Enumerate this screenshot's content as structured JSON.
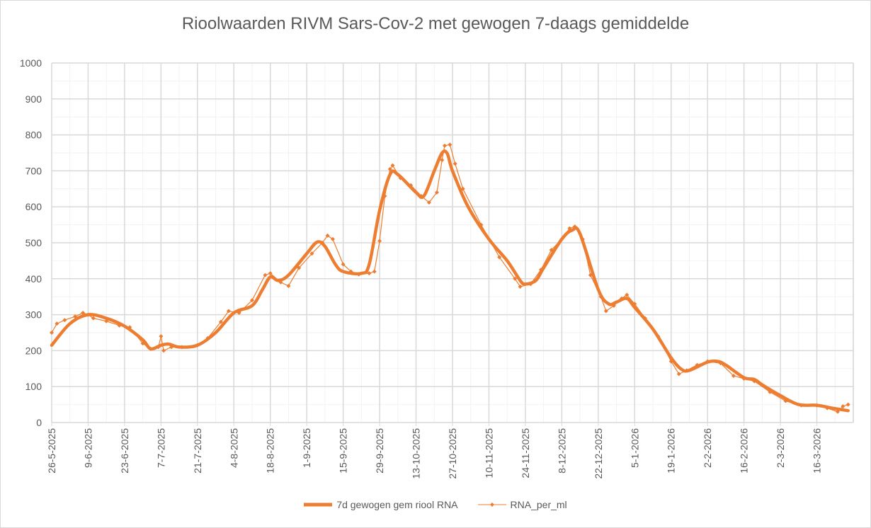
{
  "chart_data": {
    "type": "line",
    "title": "Rioolwaarden RIVM Sars-Cov-2 met gewogen 7-daags gemiddelde",
    "xlabel": "",
    "ylabel": "",
    "x_unit": "days since 26-5-2025",
    "xlim": [
      0,
      308
    ],
    "ylim": [
      0,
      1000
    ],
    "y_ticks": [
      0,
      100,
      200,
      300,
      400,
      500,
      600,
      700,
      800,
      900,
      1000
    ],
    "x_tick_labels": [
      "26-5-2025",
      "9-6-2025",
      "23-6-2025",
      "7-7-2025",
      "21-7-2025",
      "4-8-2025",
      "18-8-2025",
      "1-9-2025",
      "15-9-2025",
      "29-9-2025",
      "13-10-2025",
      "27-10-2025",
      "10-11-2025",
      "24-11-2025",
      "8-12-2025",
      "22-12-2025",
      "5-1-2026",
      "19-1-2026",
      "2-2-2026",
      "16-2-2026",
      "2-3-2026",
      "16-3-2026"
    ],
    "grid": true,
    "color": "#ED7D31",
    "legend_position": "bottom",
    "series": [
      {
        "name": "7d gewogen gem riool RNA",
        "style": "thick-line",
        "x": [
          0,
          7,
          14,
          21,
          28,
          35,
          38,
          42,
          45,
          49,
          56,
          63,
          70,
          77,
          81,
          84,
          87,
          91,
          98,
          102,
          105,
          109,
          112,
          119,
          122,
          126,
          130,
          133,
          140,
          143,
          147,
          150,
          152,
          154,
          160,
          168,
          175,
          180,
          182,
          186,
          189,
          196,
          200,
          203,
          210,
          214,
          217,
          221,
          224,
          231,
          238,
          242,
          245,
          252,
          256,
          259,
          266,
          270,
          273,
          280,
          287,
          294,
          300,
          306
        ],
        "y": [
          215,
          275,
          300,
          290,
          268,
          230,
          205,
          215,
          218,
          210,
          215,
          250,
          305,
          325,
          370,
          405,
          395,
          410,
          470,
          502,
          490,
          440,
          420,
          415,
          440,
          590,
          690,
          690,
          640,
          630,
          700,
          750,
          748,
          700,
          600,
          510,
          450,
          395,
          385,
          395,
          430,
          510,
          535,
          525,
          370,
          330,
          335,
          345,
          320,
          260,
          180,
          148,
          145,
          168,
          170,
          160,
          125,
          120,
          105,
          75,
          50,
          48,
          40,
          33
        ]
      },
      {
        "name": "RNA_per_ml",
        "style": "thin-line-diamond-markers",
        "x": [
          0,
          2,
          5,
          9,
          12,
          14,
          16,
          21,
          26,
          30,
          35,
          38,
          41,
          42,
          43,
          46,
          50,
          56,
          60,
          65,
          68,
          72,
          77,
          82,
          84,
          88,
          91,
          95,
          100,
          104,
          106,
          108,
          112,
          115,
          118,
          122,
          124,
          126,
          128,
          130,
          131,
          134,
          138,
          142,
          145,
          148,
          150,
          151,
          153,
          155,
          158,
          165,
          172,
          178,
          180,
          184,
          188,
          192,
          196,
          199,
          201,
          204,
          207,
          211,
          213,
          216,
          219,
          221,
          224,
          228,
          233,
          238,
          241,
          244,
          248,
          252,
          257,
          262,
          266,
          270,
          276,
          282,
          288,
          294,
          298,
          302,
          304,
          306
        ],
        "y": [
          250,
          275,
          285,
          295,
          305,
          300,
          290,
          282,
          270,
          265,
          220,
          205,
          210,
          240,
          200,
          210,
          210,
          215,
          235,
          280,
          310,
          305,
          340,
          410,
          415,
          390,
          380,
          430,
          470,
          500,
          520,
          510,
          440,
          420,
          412,
          415,
          420,
          505,
          630,
          705,
          715,
          680,
          660,
          630,
          612,
          640,
          730,
          770,
          773,
          720,
          650,
          550,
          460,
          400,
          378,
          385,
          425,
          480,
          510,
          540,
          545,
          510,
          410,
          350,
          310,
          325,
          345,
          355,
          330,
          290,
          240,
          170,
          135,
          145,
          160,
          170,
          165,
          130,
          122,
          115,
          85,
          60,
          48,
          48,
          40,
          30,
          45,
          50
        ]
      }
    ]
  }
}
